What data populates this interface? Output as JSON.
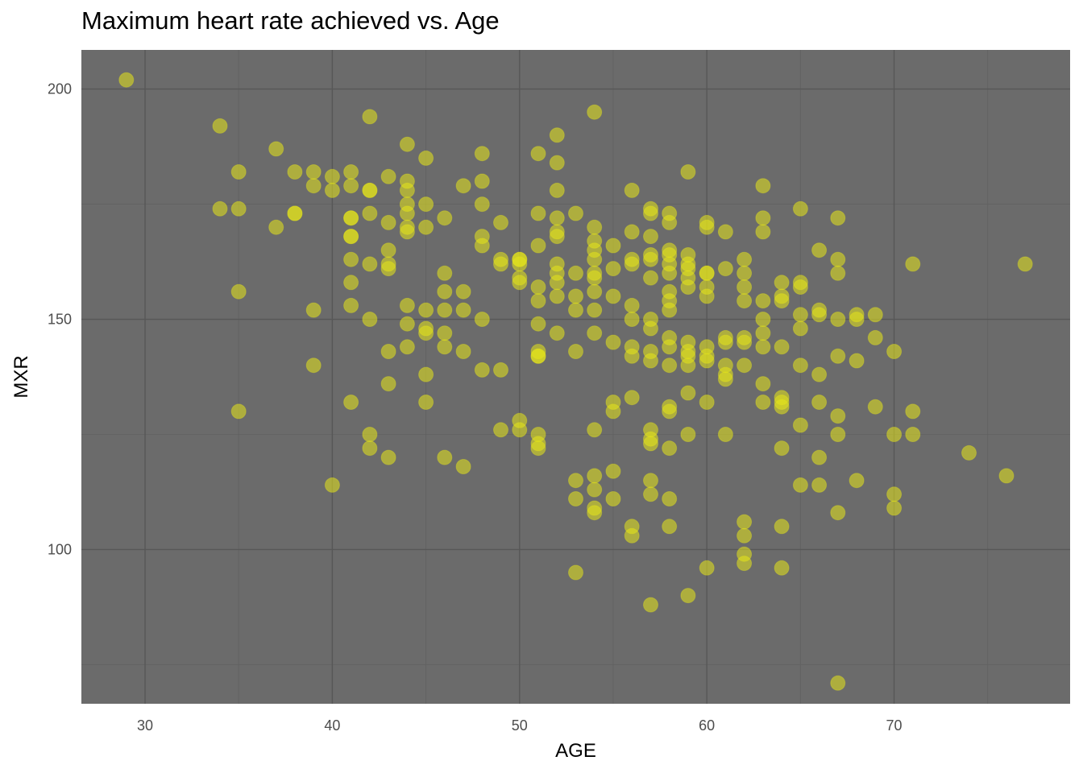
{
  "chart_data": {
    "type": "scatter",
    "title": "Maximum heart rate achieved vs. Age",
    "xlabel": "AGE",
    "ylabel": "MXR",
    "xlim": [
      26.6,
      79.4
    ],
    "ylim": [
      66.5,
      208.5
    ],
    "x_ticks": [
      30,
      40,
      50,
      60,
      70
    ],
    "y_ticks": [
      100,
      150,
      200
    ],
    "grid": true,
    "colors": {
      "panel": "#6b6b6b",
      "grid_major": "#575757",
      "grid_minor": "#616161",
      "point": "#e6e619",
      "tick_text": "#4d4d4d"
    },
    "points": [
      [
        29,
        202
      ],
      [
        34,
        192
      ],
      [
        34,
        174
      ],
      [
        35,
        182
      ],
      [
        35,
        174
      ],
      [
        35,
        156
      ],
      [
        35,
        130
      ],
      [
        37,
        187
      ],
      [
        37,
        170
      ],
      [
        38,
        182
      ],
      [
        38,
        173
      ],
      [
        38,
        173
      ],
      [
        39,
        182
      ],
      [
        39,
        179
      ],
      [
        39,
        152
      ],
      [
        39,
        140
      ],
      [
        40,
        181
      ],
      [
        40,
        178
      ],
      [
        40,
        114
      ],
      [
        41,
        182
      ],
      [
        41,
        179
      ],
      [
        41,
        172
      ],
      [
        41,
        172
      ],
      [
        41,
        168
      ],
      [
        41,
        168
      ],
      [
        41,
        163
      ],
      [
        41,
        158
      ],
      [
        41,
        153
      ],
      [
        41,
        132
      ],
      [
        42,
        194
      ],
      [
        42,
        178
      ],
      [
        42,
        178
      ],
      [
        42,
        173
      ],
      [
        42,
        162
      ],
      [
        42,
        150
      ],
      [
        42,
        125
      ],
      [
        42,
        122
      ],
      [
        43,
        181
      ],
      [
        43,
        171
      ],
      [
        43,
        165
      ],
      [
        43,
        162
      ],
      [
        43,
        161
      ],
      [
        43,
        143
      ],
      [
        43,
        136
      ],
      [
        43,
        120
      ],
      [
        44,
        188
      ],
      [
        44,
        180
      ],
      [
        44,
        178
      ],
      [
        44,
        175
      ],
      [
        44,
        173
      ],
      [
        44,
        170
      ],
      [
        44,
        169
      ],
      [
        44,
        153
      ],
      [
        44,
        149
      ],
      [
        44,
        144
      ],
      [
        45,
        185
      ],
      [
        45,
        175
      ],
      [
        45,
        170
      ],
      [
        45,
        152
      ],
      [
        45,
        148
      ],
      [
        45,
        147
      ],
      [
        45,
        138
      ],
      [
        45,
        132
      ],
      [
        46,
        172
      ],
      [
        46,
        160
      ],
      [
        46,
        156
      ],
      [
        46,
        152
      ],
      [
        46,
        147
      ],
      [
        46,
        144
      ],
      [
        46,
        120
      ],
      [
        47,
        179
      ],
      [
        47,
        156
      ],
      [
        47,
        152
      ],
      [
        47,
        143
      ],
      [
        47,
        118
      ],
      [
        48,
        186
      ],
      [
        48,
        180
      ],
      [
        48,
        175
      ],
      [
        48,
        168
      ],
      [
        48,
        166
      ],
      [
        48,
        150
      ],
      [
        48,
        139
      ],
      [
        49,
        171
      ],
      [
        49,
        163
      ],
      [
        49,
        162
      ],
      [
        49,
        139
      ],
      [
        49,
        126
      ],
      [
        50,
        163
      ],
      [
        50,
        163
      ],
      [
        50,
        162
      ],
      [
        50,
        159
      ],
      [
        50,
        158
      ],
      [
        50,
        128
      ],
      [
        50,
        126
      ],
      [
        51,
        186
      ],
      [
        51,
        173
      ],
      [
        51,
        166
      ],
      [
        51,
        157
      ],
      [
        51,
        154
      ],
      [
        51,
        149
      ],
      [
        51,
        143
      ],
      [
        51,
        142
      ],
      [
        51,
        142
      ],
      [
        51,
        125
      ],
      [
        51,
        123
      ],
      [
        51,
        122
      ],
      [
        52,
        190
      ],
      [
        52,
        184
      ],
      [
        52,
        178
      ],
      [
        52,
        172
      ],
      [
        52,
        169
      ],
      [
        52,
        168
      ],
      [
        52,
        162
      ],
      [
        52,
        160
      ],
      [
        52,
        158
      ],
      [
        52,
        155
      ],
      [
        52,
        147
      ],
      [
        53,
        173
      ],
      [
        53,
        160
      ],
      [
        53,
        155
      ],
      [
        53,
        152
      ],
      [
        53,
        143
      ],
      [
        53,
        115
      ],
      [
        53,
        111
      ],
      [
        53,
        95
      ],
      [
        54,
        195
      ],
      [
        54,
        170
      ],
      [
        54,
        167
      ],
      [
        54,
        165
      ],
      [
        54,
        163
      ],
      [
        54,
        160
      ],
      [
        54,
        159
      ],
      [
        54,
        156
      ],
      [
        54,
        152
      ],
      [
        54,
        147
      ],
      [
        54,
        126
      ],
      [
        54,
        116
      ],
      [
        54,
        113
      ],
      [
        54,
        109
      ],
      [
        54,
        108
      ],
      [
        55,
        166
      ],
      [
        55,
        161
      ],
      [
        55,
        155
      ],
      [
        55,
        145
      ],
      [
        55,
        132
      ],
      [
        55,
        130
      ],
      [
        55,
        117
      ],
      [
        55,
        111
      ],
      [
        56,
        178
      ],
      [
        56,
        169
      ],
      [
        56,
        163
      ],
      [
        56,
        162
      ],
      [
        56,
        153
      ],
      [
        56,
        150
      ],
      [
        56,
        144
      ],
      [
        56,
        142
      ],
      [
        56,
        133
      ],
      [
        56,
        105
      ],
      [
        56,
        103
      ],
      [
        57,
        174
      ],
      [
        57,
        173
      ],
      [
        57,
        168
      ],
      [
        57,
        164
      ],
      [
        57,
        163
      ],
      [
        57,
        159
      ],
      [
        57,
        150
      ],
      [
        57,
        148
      ],
      [
        57,
        143
      ],
      [
        57,
        141
      ],
      [
        57,
        126
      ],
      [
        57,
        124
      ],
      [
        57,
        123
      ],
      [
        57,
        115
      ],
      [
        57,
        112
      ],
      [
        57,
        88
      ],
      [
        58,
        173
      ],
      [
        58,
        171
      ],
      [
        58,
        165
      ],
      [
        58,
        164
      ],
      [
        58,
        162
      ],
      [
        58,
        160
      ],
      [
        58,
        156
      ],
      [
        58,
        154
      ],
      [
        58,
        152
      ],
      [
        58,
        146
      ],
      [
        58,
        144
      ],
      [
        58,
        140
      ],
      [
        58,
        131
      ],
      [
        58,
        130
      ],
      [
        58,
        122
      ],
      [
        58,
        111
      ],
      [
        58,
        105
      ],
      [
        59,
        182
      ],
      [
        59,
        164
      ],
      [
        59,
        162
      ],
      [
        59,
        161
      ],
      [
        59,
        159
      ],
      [
        59,
        157
      ],
      [
        59,
        145
      ],
      [
        59,
        143
      ],
      [
        59,
        142
      ],
      [
        59,
        140
      ],
      [
        59,
        134
      ],
      [
        59,
        125
      ],
      [
        59,
        90
      ],
      [
        60,
        171
      ],
      [
        60,
        170
      ],
      [
        60,
        160
      ],
      [
        60,
        160
      ],
      [
        60,
        157
      ],
      [
        60,
        155
      ],
      [
        60,
        144
      ],
      [
        60,
        142
      ],
      [
        60,
        141
      ],
      [
        60,
        132
      ],
      [
        60,
        96
      ],
      [
        61,
        169
      ],
      [
        61,
        161
      ],
      [
        61,
        146
      ],
      [
        61,
        145
      ],
      [
        61,
        140
      ],
      [
        61,
        138
      ],
      [
        61,
        137
      ],
      [
        61,
        125
      ],
      [
        62,
        163
      ],
      [
        62,
        160
      ],
      [
        62,
        157
      ],
      [
        62,
        154
      ],
      [
        62,
        146
      ],
      [
        62,
        145
      ],
      [
        62,
        140
      ],
      [
        62,
        106
      ],
      [
        62,
        103
      ],
      [
        62,
        99
      ],
      [
        62,
        97
      ],
      [
        63,
        179
      ],
      [
        63,
        172
      ],
      [
        63,
        169
      ],
      [
        63,
        154
      ],
      [
        63,
        150
      ],
      [
        63,
        147
      ],
      [
        63,
        144
      ],
      [
        63,
        136
      ],
      [
        63,
        132
      ],
      [
        64,
        158
      ],
      [
        64,
        155
      ],
      [
        64,
        154
      ],
      [
        64,
        144
      ],
      [
        64,
        133
      ],
      [
        64,
        132
      ],
      [
        64,
        131
      ],
      [
        64,
        122
      ],
      [
        64,
        105
      ],
      [
        64,
        96
      ],
      [
        65,
        174
      ],
      [
        65,
        158
      ],
      [
        65,
        157
      ],
      [
        65,
        151
      ],
      [
        65,
        148
      ],
      [
        65,
        140
      ],
      [
        65,
        127
      ],
      [
        65,
        114
      ],
      [
        66,
        165
      ],
      [
        66,
        152
      ],
      [
        66,
        151
      ],
      [
        66,
        138
      ],
      [
        66,
        132
      ],
      [
        66,
        120
      ],
      [
        66,
        114
      ],
      [
        67,
        172
      ],
      [
        67,
        163
      ],
      [
        67,
        160
      ],
      [
        67,
        150
      ],
      [
        67,
        142
      ],
      [
        67,
        129
      ],
      [
        67,
        125
      ],
      [
        67,
        108
      ],
      [
        67,
        71
      ],
      [
        68,
        151
      ],
      [
        68,
        150
      ],
      [
        68,
        141
      ],
      [
        68,
        115
      ],
      [
        69,
        151
      ],
      [
        69,
        146
      ],
      [
        69,
        131
      ],
      [
        70,
        143
      ],
      [
        70,
        125
      ],
      [
        70,
        112
      ],
      [
        70,
        109
      ],
      [
        71,
        162
      ],
      [
        71,
        130
      ],
      [
        71,
        125
      ],
      [
        74,
        121
      ],
      [
        76,
        116
      ],
      [
        77,
        162
      ]
    ]
  }
}
